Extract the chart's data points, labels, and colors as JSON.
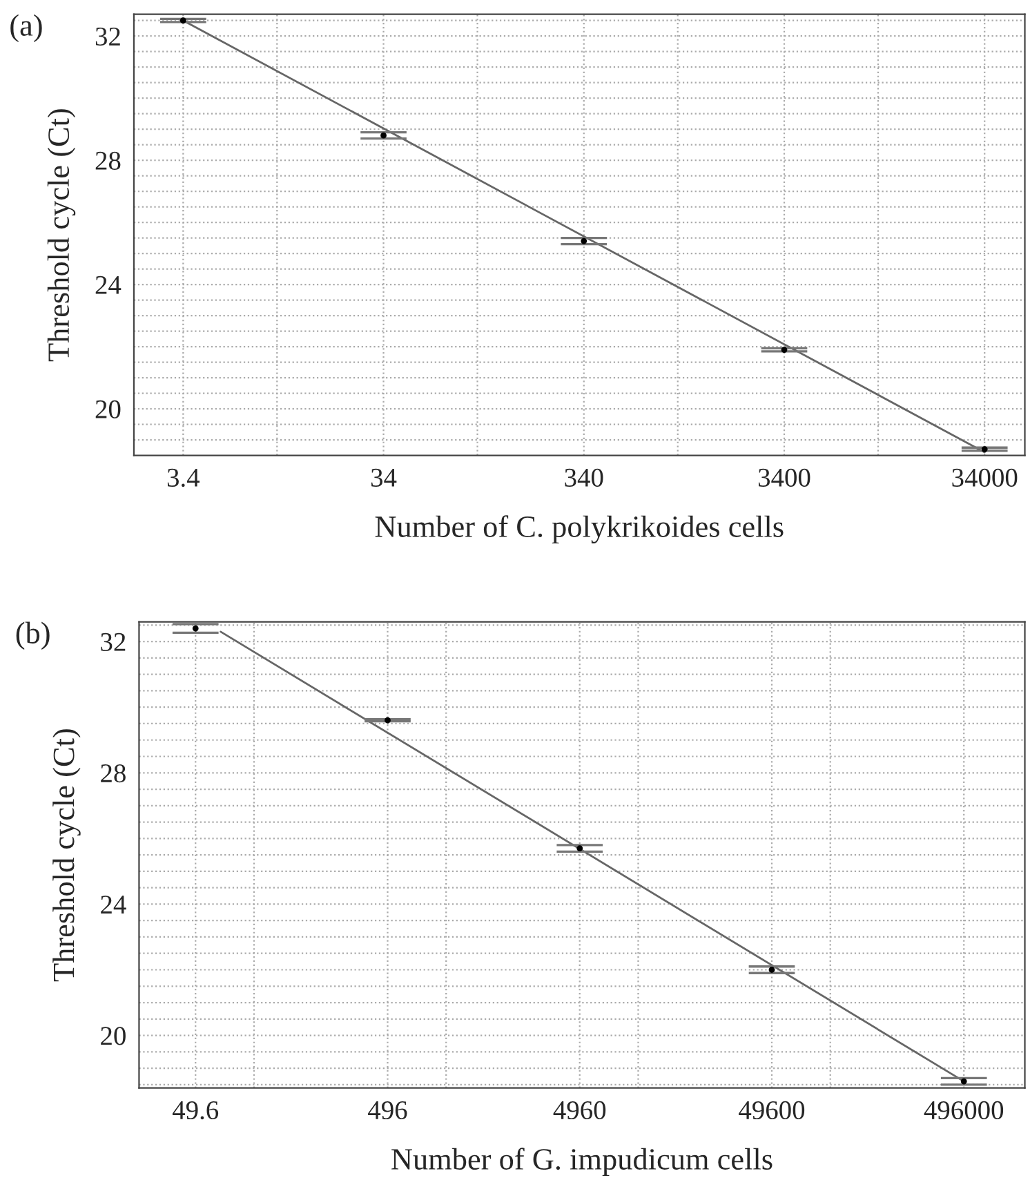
{
  "chart_data": [
    {
      "type": "scatter",
      "title": "(a)",
      "xlabel": "Number of C. polykrikoides cells",
      "ylabel": "Threshold cycle (Ct)",
      "log": "x",
      "grid": true,
      "xlim": [
        1.93,
        54000
      ],
      "xticks": [
        3.4,
        {
          "value": 10,
          "label": null
        },
        34,
        {
          "value": 100,
          "label": null
        },
        340,
        {
          "value": 1000,
          "label": null
        },
        3400,
        {
          "value": 10000,
          "label": null
        },
        34000
      ],
      "ylim": [
        18.5,
        32.7
      ],
      "yticks": [
        {
          "value": 19,
          "label": null
        },
        {
          "value": 19.5,
          "label": null
        },
        20,
        {
          "value": 20.5,
          "label": null
        },
        {
          "value": 21,
          "label": null
        },
        {
          "value": 21.5,
          "label": null
        },
        {
          "value": 22,
          "label": null
        },
        {
          "value": 22.5,
          "label": null
        },
        {
          "value": 23,
          "label": null
        },
        {
          "value": 23.5,
          "label": null
        },
        24,
        {
          "value": 24.5,
          "label": null
        },
        {
          "value": 25,
          "label": null
        },
        {
          "value": 25.5,
          "label": null
        },
        {
          "value": 26,
          "label": null
        },
        {
          "value": 26.5,
          "label": null
        },
        {
          "value": 27,
          "label": null
        },
        {
          "value": 27.5,
          "label": null
        },
        28,
        {
          "value": 28.5,
          "label": null
        },
        {
          "value": 29,
          "label": null
        },
        {
          "value": 29.5,
          "label": null
        },
        {
          "value": 30,
          "label": null
        },
        {
          "value": 30.5,
          "label": null
        },
        {
          "value": 31,
          "label": null
        },
        {
          "value": 31.5,
          "label": null
        },
        32,
        {
          "value": 32.5,
          "label": null
        }
      ],
      "series": [
        {
          "type": "line",
          "color": "#666666",
          "x": [
            3.4,
            34000
          ],
          "values": [
            32.5,
            18.6
          ]
        },
        {
          "marker": "circle",
          "color": "#000000",
          "x": [
            3.4,
            34,
            340,
            3400,
            34000
          ],
          "values": [
            32.5,
            28.8,
            25.4,
            21.9,
            18.7
          ],
          "errors": [
            0.05,
            0.1,
            0.1,
            0.05,
            0.05
          ]
        }
      ]
    },
    {
      "type": "scatter",
      "title": "(b)",
      "xlabel": "Number of G. impudicum cells",
      "ylabel": "Threshold cycle (Ct)",
      "log": "x",
      "grid": true,
      "xlim": [
        25.2,
        1030000
      ],
      "xticks": [
        49.6,
        {
          "value": 100,
          "label": null
        },
        496,
        {
          "value": 1000,
          "label": null
        },
        4960,
        {
          "value": 10000,
          "label": null
        },
        49600,
        {
          "value": 100000,
          "label": null
        },
        496000
      ],
      "ylim": [
        18.4,
        32.6
      ],
      "yticks": [
        {
          "value": 18.5,
          "label": null
        },
        {
          "value": 19,
          "label": null
        },
        {
          "value": 19.5,
          "label": null
        },
        20,
        {
          "value": 20.5,
          "label": null
        },
        {
          "value": 21,
          "label": null
        },
        {
          "value": 21.5,
          "label": null
        },
        {
          "value": 22,
          "label": null
        },
        {
          "value": 22.5,
          "label": null
        },
        {
          "value": 23,
          "label": null
        },
        {
          "value": 23.5,
          "label": null
        },
        24,
        {
          "value": 24.5,
          "label": null
        },
        {
          "value": 25,
          "label": null
        },
        {
          "value": 25.5,
          "label": null
        },
        {
          "value": 26,
          "label": null
        },
        {
          "value": 26.5,
          "label": null
        },
        {
          "value": 27,
          "label": null
        },
        {
          "value": 27.5,
          "label": null
        },
        28,
        {
          "value": 28.5,
          "label": null
        },
        {
          "value": 29,
          "label": null
        },
        {
          "value": 29.5,
          "label": null
        },
        {
          "value": 30,
          "label": null
        },
        {
          "value": 30.5,
          "label": null
        },
        {
          "value": 31,
          "label": null
        },
        {
          "value": 31.5,
          "label": null
        },
        32,
        {
          "value": 32.5,
          "label": null
        }
      ],
      "series": [
        {
          "type": "line",
          "color": "#666666",
          "x": [
            67,
            496000
          ],
          "values": [
            32.3,
            18.6
          ]
        },
        {
          "marker": "circle",
          "color": "#000000",
          "x": [
            49.6,
            496,
            4960,
            49600,
            496000
          ],
          "values": [
            32.4,
            29.6,
            25.7,
            22.0,
            18.6
          ],
          "errors": [
            0.13,
            0.03,
            0.1,
            0.1,
            0.1
          ]
        }
      ]
    }
  ]
}
